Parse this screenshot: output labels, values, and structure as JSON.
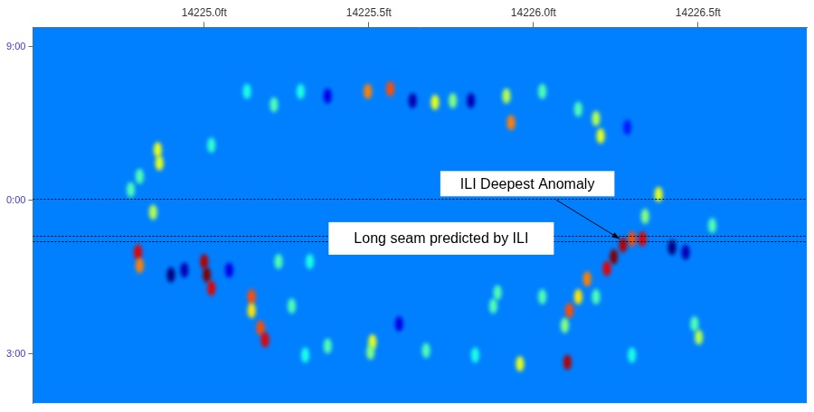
{
  "chart_data": {
    "type": "heatmap",
    "xlim": [
      14224.48,
      14226.83
    ],
    "xticks": [
      {
        "value": 14225.0,
        "label": "14225.0ft"
      },
      {
        "value": 14225.5,
        "label": "14225.5ft"
      },
      {
        "value": 14226.0,
        "label": "14226.0ft"
      },
      {
        "value": 14226.5,
        "label": "14226.5ft"
      }
    ],
    "ylim": [
      -3.38,
      3.96
    ],
    "yticks": [
      {
        "value": -3,
        "label": "9:00"
      },
      {
        "value": 0,
        "label": "0:00"
      },
      {
        "value": 3,
        "label": "3:00"
      }
    ],
    "grid": false,
    "zlim": [
      0,
      1
    ],
    "base_level": 0.25,
    "cell_size": [
      0.025,
      0.3
    ],
    "cells": [
      [
        14225.497,
        -2.13,
        0.75
      ],
      [
        14225.565,
        -2.18,
        0.8
      ],
      [
        14225.633,
        -1.95,
        0.05
      ],
      [
        14225.701,
        -1.92,
        0.6
      ],
      [
        14225.755,
        -1.95,
        0.5
      ],
      [
        14225.81,
        -1.95,
        0.05
      ],
      [
        14225.918,
        -2.04,
        0.55
      ],
      [
        14225.932,
        -1.52,
        0.75
      ],
      [
        14226.027,
        -2.13,
        0.45
      ],
      [
        14225.375,
        -2.04,
        0.1
      ],
      [
        14225.293,
        -2.13,
        0.4
      ],
      [
        14225.212,
        -1.87,
        0.45
      ],
      [
        14225.13,
        -2.13,
        0.4
      ],
      [
        14226.19,
        -1.6,
        0.55
      ],
      [
        14226.204,
        -1.26,
        0.6
      ],
      [
        14226.285,
        -1.43,
        0.15
      ],
      [
        14226.136,
        -1.78,
        0.45
      ],
      [
        14224.859,
        -0.99,
        0.6
      ],
      [
        14224.864,
        -0.73,
        0.6
      ],
      [
        14224.804,
        -0.47,
        0.45
      ],
      [
        14224.845,
        0.23,
        0.55
      ],
      [
        14224.777,
        -0.21,
        0.45
      ],
      [
        14225.022,
        -1.08,
        0.42
      ],
      [
        14224.799,
        1.01,
        0.9
      ],
      [
        14224.804,
        1.27,
        0.75
      ],
      [
        14224.899,
        1.45,
        0.0
      ],
      [
        14224.94,
        1.36,
        0.05
      ],
      [
        14225.0,
        1.19,
        0.95
      ],
      [
        14225.008,
        1.45,
        1.0
      ],
      [
        14225.022,
        1.71,
        0.9
      ],
      [
        14225.076,
        1.36,
        0.1
      ],
      [
        14225.144,
        1.88,
        0.8
      ],
      [
        14225.144,
        2.15,
        0.65
      ],
      [
        14225.171,
        2.49,
        0.8
      ],
      [
        14225.185,
        2.72,
        0.9
      ],
      [
        14225.266,
        2.06,
        0.45
      ],
      [
        14225.321,
        1.19,
        0.4
      ],
      [
        14225.226,
        1.19,
        0.45
      ],
      [
        14226.38,
        -0.12,
        0.6
      ],
      [
        14226.339,
        0.31,
        0.5
      ],
      [
        14226.299,
        0.75,
        0.8
      ],
      [
        14226.272,
        0.87,
        0.95
      ],
      [
        14226.244,
        1.1,
        1.0
      ],
      [
        14226.223,
        1.33,
        0.9
      ],
      [
        14226.331,
        0.75,
        0.9
      ],
      [
        14226.421,
        0.92,
        0.0
      ],
      [
        14226.462,
        1.01,
        0.05
      ],
      [
        14226.163,
        1.53,
        0.75
      ],
      [
        14226.136,
        1.88,
        0.65
      ],
      [
        14226.109,
        2.15,
        0.8
      ],
      [
        14226.095,
        2.44,
        0.5
      ],
      [
        14226.19,
        1.88,
        0.45
      ],
      [
        14226.027,
        1.88,
        0.45
      ],
      [
        14225.891,
        1.8,
        0.45
      ],
      [
        14225.878,
        2.06,
        0.45
      ],
      [
        14226.543,
        0.49,
        0.45
      ],
      [
        14226.489,
        2.41,
        0.45
      ],
      [
        14226.502,
        2.67,
        0.55
      ],
      [
        14225.511,
        2.76,
        0.6
      ],
      [
        14225.505,
        2.96,
        0.5
      ],
      [
        14225.375,
        2.84,
        0.45
      ],
      [
        14225.674,
        2.93,
        0.45
      ],
      [
        14225.823,
        3.02,
        0.4
      ],
      [
        14225.959,
        3.19,
        0.6
      ],
      [
        14226.103,
        3.16,
        0.95
      ],
      [
        14226.299,
        3.02,
        0.4
      ],
      [
        14225.592,
        2.41,
        0.1
      ],
      [
        14225.307,
        3.02,
        0.4
      ]
    ],
    "seam_lines": [
      -0.03,
      0.68,
      0.8
    ],
    "annotations": [
      {
        "text": "ILI Deepest Anomaly",
        "x": 14226.27,
        "y": 0.8
      },
      {
        "text": "Long seam predicted by ILI",
        "x": 14225.72,
        "y": 0.74
      }
    ]
  }
}
